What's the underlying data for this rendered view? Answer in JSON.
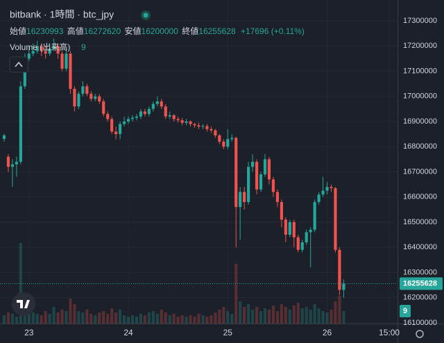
{
  "chart_data": {
    "type": "candlestick",
    "title": "bitbank · 1時間 · btc_jpy",
    "ohlc_names": [
      "始値",
      "高値",
      "安値",
      "終値"
    ],
    "change": "+17696 (+0.11%)",
    "volume_title": "Volume (出来高)",
    "up_color": "#26a69a",
    "down_color": "#ef5350",
    "open": [
      16831000,
      16760000,
      16720000,
      16730000,
      16740000,
      17040000,
      17150000,
      17170000,
      17180000,
      17200000,
      17180000,
      17170000,
      17190000,
      17200000,
      17170000,
      17110000,
      17170000,
      17030000,
      16960000,
      17010000,
      17040000,
      17010000,
      16990000,
      17000000,
      16980000,
      16930000,
      16910000,
      16860000,
      16850000,
      16890000,
      16900000,
      16910000,
      16915000,
      16920000,
      16940000,
      16930000,
      16950000,
      16970000,
      16980000,
      16960000,
      16920000,
      16925000,
      16910000,
      16905000,
      16895000,
      16900000,
      16890000,
      16885000,
      16880000,
      16882000,
      16870000,
      16865000,
      16845000,
      16820000,
      16800000,
      16830000,
      16835000,
      16560000,
      16620000,
      16580000,
      16720000,
      16740000,
      16630000,
      16690000,
      16750000,
      16670000,
      16620000,
      16580000,
      16510000,
      16450000,
      16500000,
      16440000,
      16390000,
      16420000,
      16460000,
      16470000,
      16580000,
      16610000,
      16625000,
      16640000,
      16635000,
      16390000,
      16230993
    ],
    "high": [
      16852000,
      16770000,
      16750000,
      16760000,
      17060000,
      17170000,
      17200000,
      17210000,
      17220000,
      17210000,
      17200000,
      17210000,
      17230000,
      17210000,
      17180000,
      17190000,
      17180000,
      17040000,
      17020000,
      17060000,
      17050000,
      17020000,
      17010000,
      17010000,
      16990000,
      16940000,
      16920000,
      16880000,
      16900000,
      16920000,
      16920000,
      16925000,
      16930000,
      16950000,
      16950000,
      16960000,
      16980000,
      17000000,
      16990000,
      16970000,
      16940000,
      16930000,
      16920000,
      16915000,
      16910000,
      16905000,
      16895000,
      16895000,
      16890000,
      16890000,
      16880000,
      16870000,
      16850000,
      16830000,
      16870000,
      16850000,
      16840000,
      16640000,
      16640000,
      16740000,
      16770000,
      16750000,
      16700000,
      16770000,
      16760000,
      16680000,
      16630000,
      16590000,
      16520000,
      16510000,
      16510000,
      16450000,
      16430000,
      16470000,
      16480000,
      16590000,
      16620000,
      16680000,
      16660000,
      16650000,
      16640000,
      16400000,
      16272620
    ],
    "low": [
      16820000,
      16700000,
      16640000,
      16680000,
      16730000,
      17030000,
      17140000,
      17160000,
      17170000,
      17160000,
      17150000,
      17160000,
      17180000,
      17150000,
      17100000,
      17100000,
      17010000,
      16940000,
      16950000,
      17000000,
      17000000,
      16980000,
      16980000,
      16970000,
      16920000,
      16900000,
      16850000,
      16830000,
      16830000,
      16880000,
      16890000,
      16900000,
      16905000,
      16910000,
      16920000,
      16920000,
      16940000,
      16960000,
      16950000,
      16910000,
      16910000,
      16900000,
      16895000,
      16885000,
      16885000,
      16880000,
      16875000,
      16870000,
      16870000,
      16860000,
      16855000,
      16835000,
      16810000,
      16790000,
      16790000,
      16820000,
      16400000,
      16430000,
      16550000,
      16570000,
      16700000,
      16610000,
      16620000,
      16680000,
      16650000,
      16600000,
      16560000,
      16480000,
      16420000,
      16440000,
      16400000,
      16380000,
      16380000,
      16410000,
      16320000,
      16460000,
      16570000,
      16600000,
      16610000,
      16620000,
      16380000,
      16210000,
      16200000
    ],
    "close": [
      16845000,
      16720000,
      16730000,
      16740000,
      17040000,
      17150000,
      17170000,
      17180000,
      17200000,
      17180000,
      17170000,
      17190000,
      17200000,
      17170000,
      17110000,
      17170000,
      17030000,
      16960000,
      17010000,
      17040000,
      17010000,
      16990000,
      17000000,
      16980000,
      16930000,
      16910000,
      16860000,
      16850000,
      16890000,
      16900000,
      16910000,
      16915000,
      16920000,
      16940000,
      16930000,
      16950000,
      16970000,
      16980000,
      16960000,
      16920000,
      16925000,
      16910000,
      16905000,
      16895000,
      16900000,
      16890000,
      16885000,
      16880000,
      16882000,
      16870000,
      16865000,
      16845000,
      16820000,
      16800000,
      16830000,
      16835000,
      16560000,
      16620000,
      16580000,
      16720000,
      16740000,
      16630000,
      16690000,
      16750000,
      16670000,
      16620000,
      16580000,
      16510000,
      16450000,
      16500000,
      16440000,
      16390000,
      16420000,
      16460000,
      16470000,
      16580000,
      16610000,
      16625000,
      16640000,
      16635000,
      16390000,
      16230993,
      16255628
    ],
    "volume": [
      6,
      8,
      7,
      5,
      58,
      20,
      10,
      8,
      7,
      6,
      9,
      7,
      12,
      8,
      10,
      9,
      18,
      14,
      9,
      8,
      10,
      7,
      6,
      8,
      9,
      7,
      11,
      8,
      10,
      6,
      5,
      6,
      5,
      7,
      6,
      8,
      9,
      7,
      10,
      8,
      6,
      7,
      5,
      6,
      5,
      6,
      5,
      7,
      6,
      5,
      6,
      8,
      10,
      12,
      9,
      7,
      43,
      16,
      12,
      14,
      10,
      12,
      9,
      11,
      10,
      13,
      9,
      14,
      12,
      10,
      13,
      15,
      11,
      12,
      10,
      14,
      11,
      9,
      8,
      10,
      16,
      20,
      9
    ],
    "volume_ylim": [
      0,
      233
    ],
    "ylim": [
      16097000,
      17383000
    ],
    "yticks": [
      17300000,
      17200000,
      17100000,
      17000000,
      16900000,
      16800000,
      16700000,
      16600000,
      16500000,
      16400000,
      16300000,
      16200000,
      16100000
    ],
    "xlim": [
      -1,
      95
    ],
    "xticks": [
      {
        "value": 6,
        "label": "23"
      },
      {
        "value": 30,
        "label": "24"
      },
      {
        "value": 54,
        "label": "25"
      },
      {
        "value": 78,
        "label": "26"
      },
      {
        "value": 93,
        "label": "15:00"
      }
    ]
  }
}
